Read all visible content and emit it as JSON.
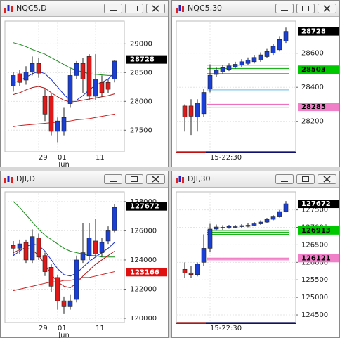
{
  "chart_data": [
    {
      "type": "candlestick",
      "title": "NQC5,D",
      "categories": [
        null,
        null,
        null,
        null,
        "29",
        null,
        null,
        "01",
        null,
        null,
        null,
        null,
        null,
        "11",
        null,
        null,
        null
      ],
      "category_sublabels": [
        null,
        null,
        null,
        null,
        null,
        null,
        null,
        null,
        "Jun",
        null,
        null,
        null,
        null,
        null,
        null,
        null,
        null
      ],
      "open": [
        28270,
        28480,
        28370,
        28510,
        28660,
        28090,
        28090,
        27480,
        27480,
        27960,
        28450,
        28660,
        28780,
        28090,
        28330,
        28330,
        28390
      ],
      "close": [
        28450,
        28330,
        28510,
        28660,
        28490,
        27780,
        27480,
        27660,
        27720,
        28450,
        28660,
        28390,
        28090,
        28390,
        28150,
        28210,
        28700
      ],
      "high": [
        28510,
        28540,
        28610,
        28780,
        28760,
        28210,
        28150,
        27720,
        27900,
        28570,
        28700,
        28760,
        28820,
        28820,
        28450,
        28390,
        28720
      ],
      "low": [
        28170,
        28270,
        28290,
        28450,
        28410,
        27660,
        27410,
        27290,
        27410,
        27900,
        28390,
        28150,
        28020,
        28020,
        28080,
        28150,
        28330
      ],
      "up_color": "#1a3fd6",
      "down_color": "#e01818",
      "series": [
        {
          "color": "#1a8a1a",
          "values": [
            29020,
            28990,
            28950,
            28900,
            28860,
            28820,
            28760,
            28700,
            28640,
            28580,
            28540,
            28510,
            28480,
            28470,
            28460,
            28450,
            28450
          ]
        },
        {
          "color": "#1a2fd0",
          "values": [
            28320,
            28360,
            28420,
            28480,
            28520,
            28480,
            28380,
            28250,
            28120,
            28020,
            28020,
            28100,
            28200,
            28280,
            28330,
            28390,
            28500
          ]
        },
        {
          "color": "#b01818",
          "values": [
            28120,
            28150,
            28200,
            28240,
            28260,
            28230,
            28150,
            28080,
            28020,
            27990,
            28000,
            28020,
            28040,
            28060,
            28080,
            28100,
            28130
          ]
        },
        {
          "color": "#d02020",
          "values": [
            27560,
            27580,
            27590,
            27600,
            27610,
            27620,
            27630,
            27640,
            27650,
            27660,
            27680,
            27690,
            27700,
            27720,
            27740,
            27760,
            27780
          ]
        }
      ],
      "levels": [],
      "ylim": [
        27150,
        29370
      ],
      "yticks": [
        27500,
        28000,
        28500,
        29000
      ],
      "grid": true,
      "price_labels": [
        {
          "value": 28728,
          "color": "#000000",
          "text_color": "#ffffff"
        }
      ]
    },
    {
      "type": "candlestick",
      "title": "NQC5,30",
      "categories": [
        null,
        null,
        null,
        null,
        "15-22:30",
        null,
        null,
        null,
        null,
        null,
        null,
        null,
        null,
        null,
        null,
        null,
        null
      ],
      "category_sublabels": [],
      "open": [
        28290,
        28290,
        28225,
        28245,
        28390,
        28475,
        28490,
        28505,
        28520,
        28530,
        28540,
        28550,
        28560,
        28580,
        28600,
        28620,
        28670
      ],
      "close": [
        28225,
        28230,
        28307,
        28370,
        28470,
        28500,
        28515,
        28525,
        28535,
        28550,
        28560,
        28575,
        28590,
        28610,
        28640,
        28680,
        28728
      ],
      "high": [
        28300,
        28330,
        28330,
        28390,
        28535,
        28515,
        28530,
        28540,
        28550,
        28565,
        28575,
        28590,
        28605,
        28625,
        28655,
        28700,
        28750
      ],
      "low": [
        28140,
        28120,
        28140,
        28225,
        28370,
        28460,
        28480,
        28495,
        28510,
        28520,
        28530,
        28540,
        28550,
        28570,
        28590,
        28610,
        28660
      ],
      "up_color": "#1a3fd6",
      "down_color": "#e01818",
      "series": [],
      "levels": [
        {
          "value": 28530,
          "color": "#20b020"
        },
        {
          "value": 28510,
          "color": "#20b020"
        },
        {
          "value": 28480,
          "color": "#20b020"
        },
        {
          "value": 28300,
          "color": "#f070c0"
        },
        {
          "value": 28280,
          "color": "#f070c0"
        },
        {
          "value": 28385,
          "color": "#80c8e8"
        }
      ],
      "ylim": [
        28030,
        28780
      ],
      "yticks": [
        28200,
        28400,
        28600
      ],
      "grid": true,
      "price_labels": [
        {
          "value": 28728,
          "color": "#000000",
          "text_color": "#ffffff"
        },
        {
          "value": 28503,
          "color": "#00c800",
          "text_color": "#000000"
        },
        {
          "value": 28285,
          "color": "#f080c8",
          "text_color": "#000000"
        }
      ]
    },
    {
      "type": "candlestick",
      "title": "DJI,D",
      "categories": [
        null,
        null,
        null,
        null,
        "29",
        null,
        null,
        "01",
        null,
        null,
        null,
        null,
        null,
        "11",
        null,
        null,
        null
      ],
      "category_sublabels": [
        null,
        null,
        null,
        null,
        null,
        null,
        null,
        null,
        "Jun",
        null,
        null,
        null,
        null,
        null,
        null,
        null,
        null
      ],
      "open": [
        125000,
        124800,
        125200,
        124000,
        125500,
        124300,
        123500,
        122800,
        121200,
        120800,
        121300,
        124000,
        124300,
        125300,
        124500,
        125300,
        126000
      ],
      "close": [
        124800,
        125100,
        124000,
        125600,
        124200,
        123200,
        122200,
        121200,
        120800,
        121200,
        124000,
        124500,
        125500,
        124400,
        125200,
        126000,
        127600
      ],
      "high": [
        125300,
        125400,
        125400,
        126100,
        125800,
        124500,
        123700,
        123000,
        121500,
        121600,
        124300,
        126500,
        126500,
        126800,
        125500,
        126300,
        127800
      ],
      "low": [
        124300,
        124400,
        123800,
        123800,
        124000,
        122900,
        121800,
        120600,
        120300,
        120600,
        121100,
        123800,
        124000,
        124200,
        124200,
        125100,
        125900
      ],
      "up_color": "#1a3fd6",
      "down_color": "#e01818",
      "series": [
        {
          "color": "#1a8a1a",
          "values": [
            128000,
            127600,
            127100,
            126600,
            126100,
            125700,
            125400,
            125100,
            124800,
            124600,
            124500,
            124400,
            124300,
            124300,
            124200,
            124200,
            124200
          ]
        },
        {
          "color": "#1a2fd0",
          "values": [
            124300,
            124600,
            124900,
            125100,
            125000,
            124600,
            124000,
            123400,
            123000,
            122900,
            123100,
            123500,
            123900,
            124200,
            124500,
            124800,
            125200
          ]
        },
        {
          "color": "#b01818",
          "values": [
            124500,
            124700,
            124800,
            124700,
            124300,
            123700,
            123000,
            122500,
            122200,
            122100,
            122400,
            122900,
            123300,
            123700,
            124000,
            124300,
            124600
          ]
        },
        {
          "color": "#d02020",
          "values": [
            121900,
            122000,
            122100,
            122200,
            122300,
            122400,
            122500,
            122500,
            122600,
            122600,
            122700,
            122800,
            122800,
            122900,
            123000,
            123100,
            123200
          ]
        }
      ],
      "levels": [],
      "ylim": [
        119810,
        128570
      ],
      "yticks": [
        120000,
        122000,
        124000,
        126000,
        128000
      ],
      "grid": true,
      "price_labels": [
        {
          "value": 127672,
          "color": "#000000",
          "text_color": "#ffffff"
        },
        {
          "value": 123166,
          "color": "#e01010",
          "text_color": "#ffffff"
        }
      ]
    },
    {
      "type": "candlestick",
      "title": "DJI,30",
      "categories": [
        null,
        null,
        null,
        null,
        "15-22:30",
        null,
        null,
        null,
        null,
        null,
        null,
        null,
        null,
        null,
        null,
        null,
        null
      ],
      "category_sublabels": [],
      "open": [
        125800,
        125700,
        125650,
        126000,
        126400,
        126950,
        126980,
        127000,
        127010,
        127020,
        127030,
        127060,
        127100,
        127150,
        127230,
        127300,
        127450
      ],
      "close": [
        125700,
        125650,
        125950,
        126400,
        126950,
        127010,
        127000,
        127030,
        127020,
        127050,
        127060,
        127100,
        127150,
        127230,
        127300,
        127450,
        127672
      ],
      "high": [
        126000,
        125900,
        126000,
        126800,
        127100,
        127080,
        127060,
        127070,
        127070,
        127090,
        127110,
        127150,
        127200,
        127270,
        127350,
        127500,
        127750
      ],
      "low": [
        125550,
        125550,
        125600,
        125900,
        126300,
        126900,
        126930,
        126960,
        126970,
        126990,
        127000,
        127030,
        127070,
        127120,
        127200,
        127280,
        127430
      ],
      "up_color": "#1a3fd6",
      "down_color": "#e01818",
      "series": [],
      "levels": [
        {
          "value": 126913,
          "color": "#20b020"
        },
        {
          "value": 126860,
          "color": "#20b020"
        },
        {
          "value": 126800,
          "color": "#20b020"
        },
        {
          "value": 126121,
          "color": "#f070c0"
        },
        {
          "value": 126070,
          "color": "#f070c0"
        }
      ],
      "ylim": [
        124320,
        127974
      ],
      "yticks": [
        124500,
        125000,
        125500,
        126000,
        126500,
        127000,
        127500
      ],
      "grid": true,
      "price_labels": [
        {
          "value": 127672,
          "color": "#000000",
          "text_color": "#ffffff"
        },
        {
          "value": 126913,
          "color": "#00c800",
          "text_color": "#000000"
        },
        {
          "value": 126121,
          "color": "#f080c8",
          "text_color": "#000000"
        }
      ]
    }
  ]
}
